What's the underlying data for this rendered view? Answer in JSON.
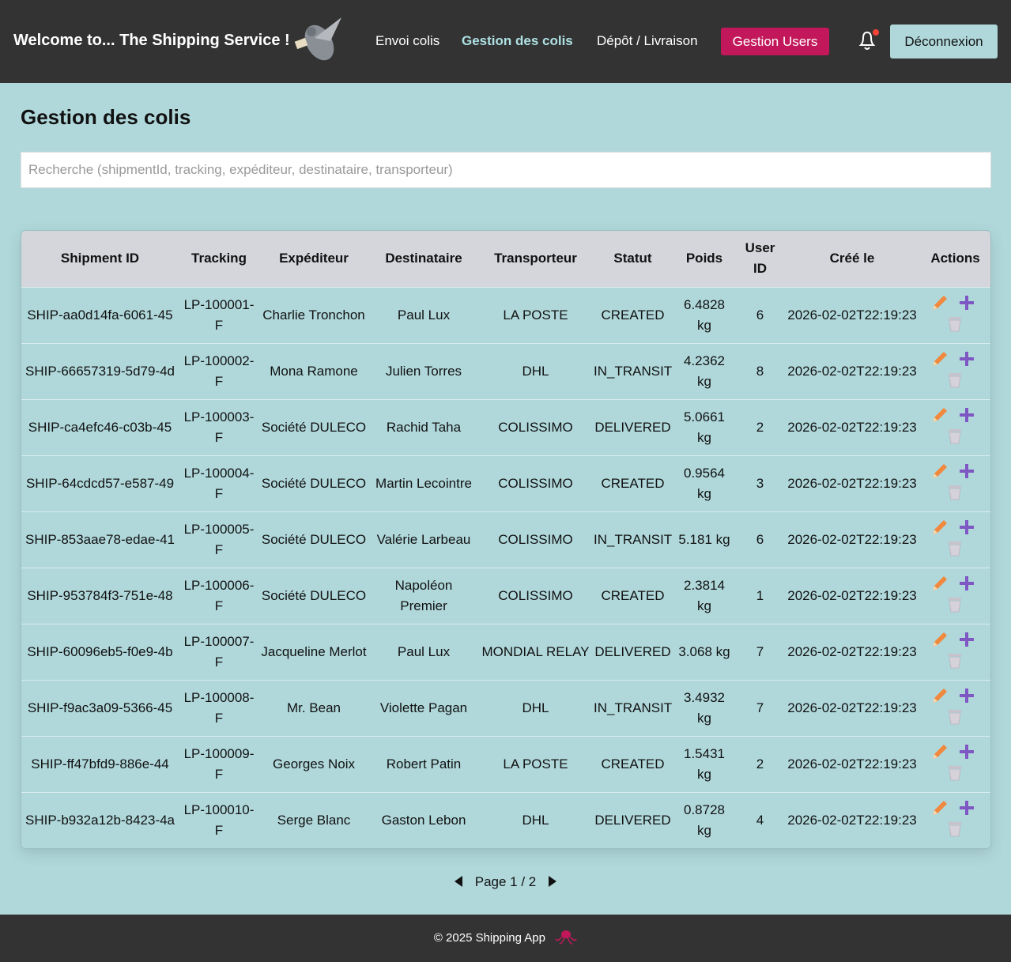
{
  "header": {
    "title": "Welcome to... The Shipping Service !",
    "nav": [
      "Envoi colis",
      "Gestion des colis",
      "Dépôt / Livraison",
      "Gestion Users"
    ],
    "logout": "Déconnexion"
  },
  "page": {
    "title": "Gestion des colis",
    "search_placeholder": "Recherche (shipmentId, tracking, expéditeur, destinataire, transporteur)"
  },
  "table": {
    "columns": [
      "Shipment ID",
      "Tracking",
      "Expéditeur",
      "Destinataire",
      "Transporteur",
      "Statut",
      "Poids",
      "User ID",
      "Créé le",
      "Actions"
    ],
    "rows": [
      [
        "SHIP-aa0d14fa-6061-45",
        "LP-100001-F",
        "Charlie Tronchon",
        "Paul Lux",
        "LA POSTE",
        "CREATED",
        "6.4828 kg",
        6,
        "2026-02-02T22:19:23"
      ],
      [
        "SHIP-66657319-5d79-4d",
        "LP-100002-F",
        "Mona Ramone",
        "Julien Torres",
        "DHL",
        "IN_TRANSIT",
        "4.2362 kg",
        8,
        "2026-02-02T22:19:23"
      ],
      [
        "SHIP-ca4efc46-c03b-45",
        "LP-100003-F",
        "Société DULECO",
        "Rachid Taha",
        "COLISSIMO",
        "DELIVERED",
        "5.0661 kg",
        2,
        "2026-02-02T22:19:23"
      ],
      [
        "SHIP-64cdcd57-e587-49",
        "LP-100004-F",
        "Société DULECO",
        "Martin Lecointre",
        "COLISSIMO",
        "CREATED",
        "0.9564 kg",
        3,
        "2026-02-02T22:19:23"
      ],
      [
        "SHIP-853aae78-edae-41",
        "LP-100005-F",
        "Société DULECO",
        "Valérie Larbeau",
        "COLISSIMO",
        "IN_TRANSIT",
        "5.181 kg",
        6,
        "2026-02-02T22:19:23"
      ],
      [
        "SHIP-953784f3-751e-48",
        "LP-100006-F",
        "Société DULECO",
        "Napoléon Premier",
        "COLISSIMO",
        "CREATED",
        "2.3814 kg",
        1,
        "2026-02-02T22:19:23"
      ],
      [
        "SHIP-60096eb5-f0e9-4b",
        "LP-100007-F",
        "Jacqueline Merlot",
        "Paul Lux",
        "MONDIAL RELAY",
        "DELIVERED",
        "3.068 kg",
        7,
        "2026-02-02T22:19:23"
      ],
      [
        "SHIP-f9ac3a09-5366-45",
        "LP-100008-F",
        "Mr. Bean",
        "Violette Pagan",
        "DHL",
        "IN_TRANSIT",
        "3.4932 kg",
        7,
        "2026-02-02T22:19:23"
      ],
      [
        "SHIP-ff47bfd9-886e-44",
        "LP-100009-F",
        "Georges Noix",
        "Robert Patin",
        "LA POSTE",
        "CREATED",
        "1.5431 kg",
        2,
        "2026-02-02T22:19:23"
      ],
      [
        "SHIP-b932a12b-8423-4a",
        "LP-100010-F",
        "Serge Blanc",
        "Gaston Lebon",
        "DHL",
        "DELIVERED",
        "0.8728 kg",
        4,
        "2026-02-02T22:19:23"
      ]
    ]
  },
  "pagination": {
    "label": "Page 1 / 2"
  },
  "footer": {
    "text": "© 2025 Shipping App"
  }
}
